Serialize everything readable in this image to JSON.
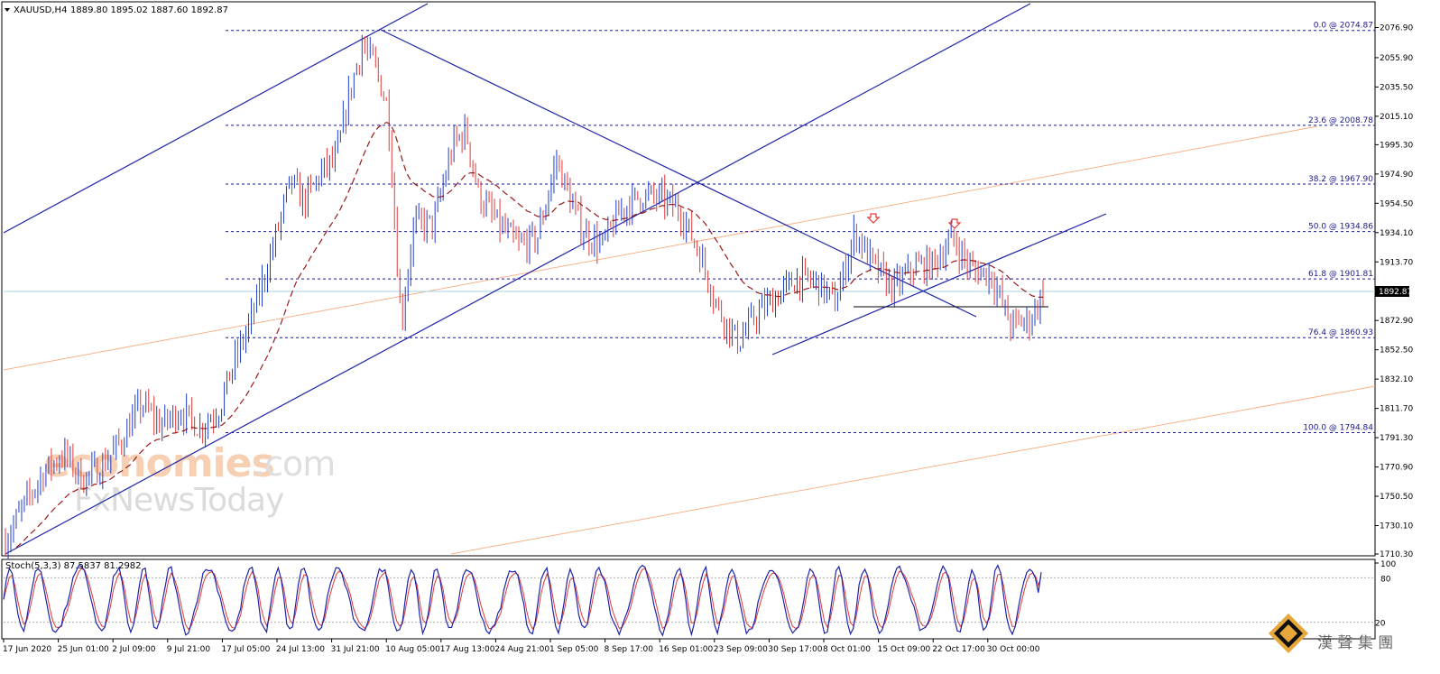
{
  "header": {
    "menu_icon": "triangle-down-icon",
    "symbol": "XAUUSD,H4",
    "ohlc": "1889.80 1895.02 1887.60 1892.87"
  },
  "osc_header": "Stoch(5,3,3) 87.5837 81.2982",
  "price_tag": "1892.87",
  "watermark": {
    "word1": "economies",
    "word1b": ".com",
    "word2": "FxNewsToday"
  },
  "brand": {
    "logo": "diamond-logo-icon",
    "text": "漢 聲 集 團"
  },
  "colors": {
    "bull": "#1f3ec7",
    "bear": "#e03a3a",
    "trend": "#1f24a8",
    "fib": "#1a1a8c",
    "ma": "#9a1a1a",
    "orange": "#f6b28a",
    "price": "#a8d4e6"
  },
  "chart_data": {
    "type": "candlestick",
    "symbol": "XAUUSD",
    "timeframe": "H4",
    "ylim": [
      1700,
      2090
    ],
    "y_ticks": [
      "2076.90",
      "2055.90",
      "2035.50",
      "2015.10",
      "1995.30",
      "1974.90",
      "1954.50",
      "1934.10",
      "1913.70",
      "1892.87",
      "1872.90",
      "1852.50",
      "1832.10",
      "1811.70",
      "1791.30",
      "1770.90",
      "1750.50",
      "1730.10",
      "1710.30"
    ],
    "x_ticks": [
      "17 Jun 2020",
      "25 Jun 01:00",
      "2 Jul 09:00",
      "9 Jul 21:00",
      "17 Jul 05:00",
      "24 Jul 13:00",
      "31 Jul 21:00",
      "10 Aug 05:00",
      "17 Aug 13:00",
      "24 Aug 21:00",
      "1 Sep 05:00",
      "8 Sep 17:00",
      "16 Sep 01:00",
      "23 Sep 09:00",
      "30 Sep 17:00",
      "8 Oct 01:00",
      "15 Oct 09:00",
      "22 Oct 17:00",
      "30 Oct 00:00"
    ],
    "fib_levels": [
      {
        "label": "0.0 @ 2074.87",
        "price": 2074.87
      },
      {
        "label": "23.6 @ 2008.78",
        "price": 2008.78
      },
      {
        "label": "38.2 @ 1967.90",
        "price": 1967.9
      },
      {
        "label": "50.0 @ 1934.86",
        "price": 1934.86
      },
      {
        "label": "61.8 @ 1901.81",
        "price": 1901.81
      },
      {
        "label": "76.4 @ 1860.93",
        "price": 1860.93
      },
      {
        "label": "100.0 @ 1794.84",
        "price": 1794.84
      }
    ],
    "last_price": 1892.87,
    "price_path": [
      [
        0,
        1720
      ],
      [
        3,
        1745
      ],
      [
        6,
        1768
      ],
      [
        9,
        1780
      ],
      [
        12,
        1762
      ],
      [
        15,
        1772
      ],
      [
        18,
        1790
      ],
      [
        21,
        1815
      ],
      [
        24,
        1800
      ],
      [
        27,
        1810
      ],
      [
        30,
        1798
      ],
      [
        33,
        1812
      ],
      [
        35,
        1840
      ],
      [
        38,
        1875
      ],
      [
        41,
        1920
      ],
      [
        44,
        1970
      ],
      [
        46,
        1955
      ],
      [
        49,
        1978
      ],
      [
        51,
        1985
      ],
      [
        53,
        2030
      ],
      [
        55,
        2065
      ],
      [
        57,
        2050
      ],
      [
        59,
        2020
      ],
      [
        61,
        1870
      ],
      [
        63,
        1940
      ],
      [
        66,
        1940
      ],
      [
        69,
        1995
      ],
      [
        71,
        2005
      ],
      [
        73,
        1960
      ],
      [
        76,
        1940
      ],
      [
        79,
        1925
      ],
      [
        82,
        1930
      ],
      [
        85,
        1985
      ],
      [
        87,
        1958
      ],
      [
        89,
        1935
      ],
      [
        92,
        1925
      ],
      [
        95,
        1950
      ],
      [
        98,
        1960
      ],
      [
        101,
        1958
      ],
      [
        104,
        1950
      ],
      [
        107,
        1920
      ],
      [
        110,
        1880
      ],
      [
        113,
        1858
      ],
      [
        116,
        1878
      ],
      [
        119,
        1890
      ],
      [
        122,
        1902
      ],
      [
        125,
        1900
      ],
      [
        128,
        1885
      ],
      [
        131,
        1935
      ],
      [
        134,
        1910
      ],
      [
        137,
        1895
      ],
      [
        140,
        1910
      ],
      [
        143,
        1912
      ],
      [
        146,
        1930
      ],
      [
        149,
        1908
      ],
      [
        152,
        1905
      ],
      [
        155,
        1870
      ],
      [
        158,
        1873
      ],
      [
        160,
        1892.87
      ]
    ],
    "stoch_range": [
      0,
      100
    ],
    "stoch_levels": [
      20,
      80
    ],
    "stoch_last": {
      "k": 87.5837,
      "d": 81.2982
    }
  }
}
